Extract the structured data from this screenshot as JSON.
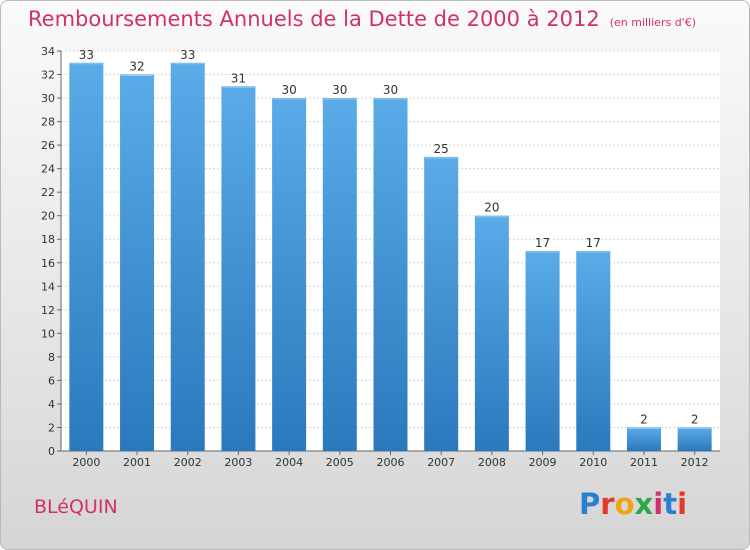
{
  "header": {
    "title": "Remboursements Annuels de la Dette de 2000 à 2012",
    "subtitle": "(en milliers d'€)"
  },
  "footer": {
    "commune": "BLéQUIN",
    "logo_text": "Proxiti"
  },
  "colors": {
    "bar_top": "#5aabe8",
    "bar_bottom": "#2a79bd",
    "accent": "#d1306e",
    "logo_letters": [
      "#2a7fd4",
      "#e23a2a",
      "#f2a312",
      "#2aa84a",
      "#d1306e",
      "#2a7fd4",
      "#e23a2a"
    ]
  },
  "chart_data": {
    "type": "bar",
    "title": "Remboursements Annuels de la Dette de 2000 à 2012",
    "subtitle": "(en milliers d'€)",
    "xlabel": "",
    "ylabel": "",
    "categories": [
      "2000",
      "2001",
      "2002",
      "2003",
      "2004",
      "2005",
      "2006",
      "2007",
      "2008",
      "2009",
      "2010",
      "2011",
      "2012"
    ],
    "values": [
      33,
      32,
      33,
      31,
      30,
      30,
      30,
      25,
      20,
      17,
      17,
      2,
      2
    ],
    "ylim": [
      0,
      34
    ],
    "yticks": [
      0,
      2,
      4,
      6,
      8,
      10,
      12,
      14,
      16,
      18,
      20,
      22,
      24,
      26,
      28,
      30,
      32,
      34
    ],
    "grid": true,
    "data_labels": true,
    "legend": "none"
  }
}
